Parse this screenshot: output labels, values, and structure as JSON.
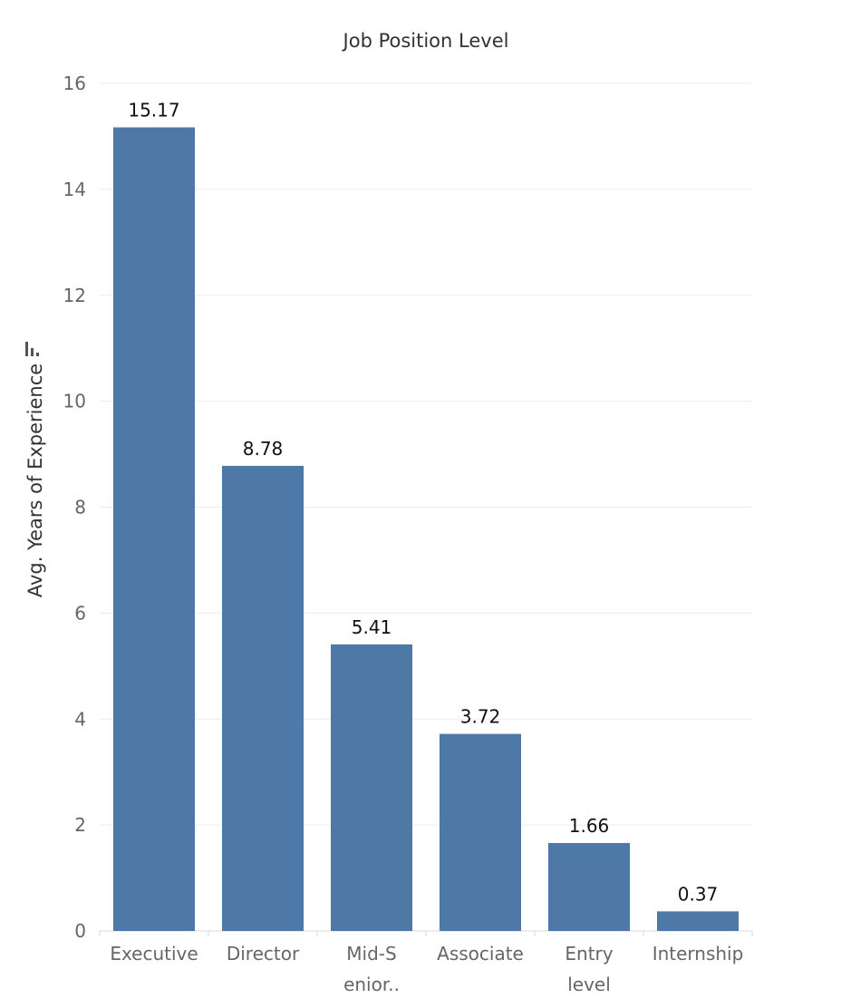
{
  "chart_data": {
    "type": "bar",
    "title": "Job Position Level",
    "xlabel": "",
    "ylabel": "Avg. Years of Experience",
    "categories": [
      "Executive",
      "Director",
      "Mid-Senior level",
      "Associate",
      "Entry level",
      "Internship"
    ],
    "category_display": [
      [
        "Executive"
      ],
      [
        "Director"
      ],
      [
        "Mid-S",
        "enior.."
      ],
      [
        "Associate"
      ],
      [
        "Entry",
        "level"
      ],
      [
        "Internship"
      ]
    ],
    "values": [
      15.17,
      8.78,
      5.41,
      3.72,
      1.66,
      0.37
    ],
    "data_labels": [
      "15.17",
      "8.78",
      "5.41",
      "3.72",
      "1.66",
      "0.37"
    ],
    "ylim": [
      0,
      16
    ],
    "yticks": [
      0,
      2,
      4,
      6,
      8,
      10,
      12,
      14,
      16
    ],
    "grid": true,
    "bar_color": "#4e79a7"
  }
}
